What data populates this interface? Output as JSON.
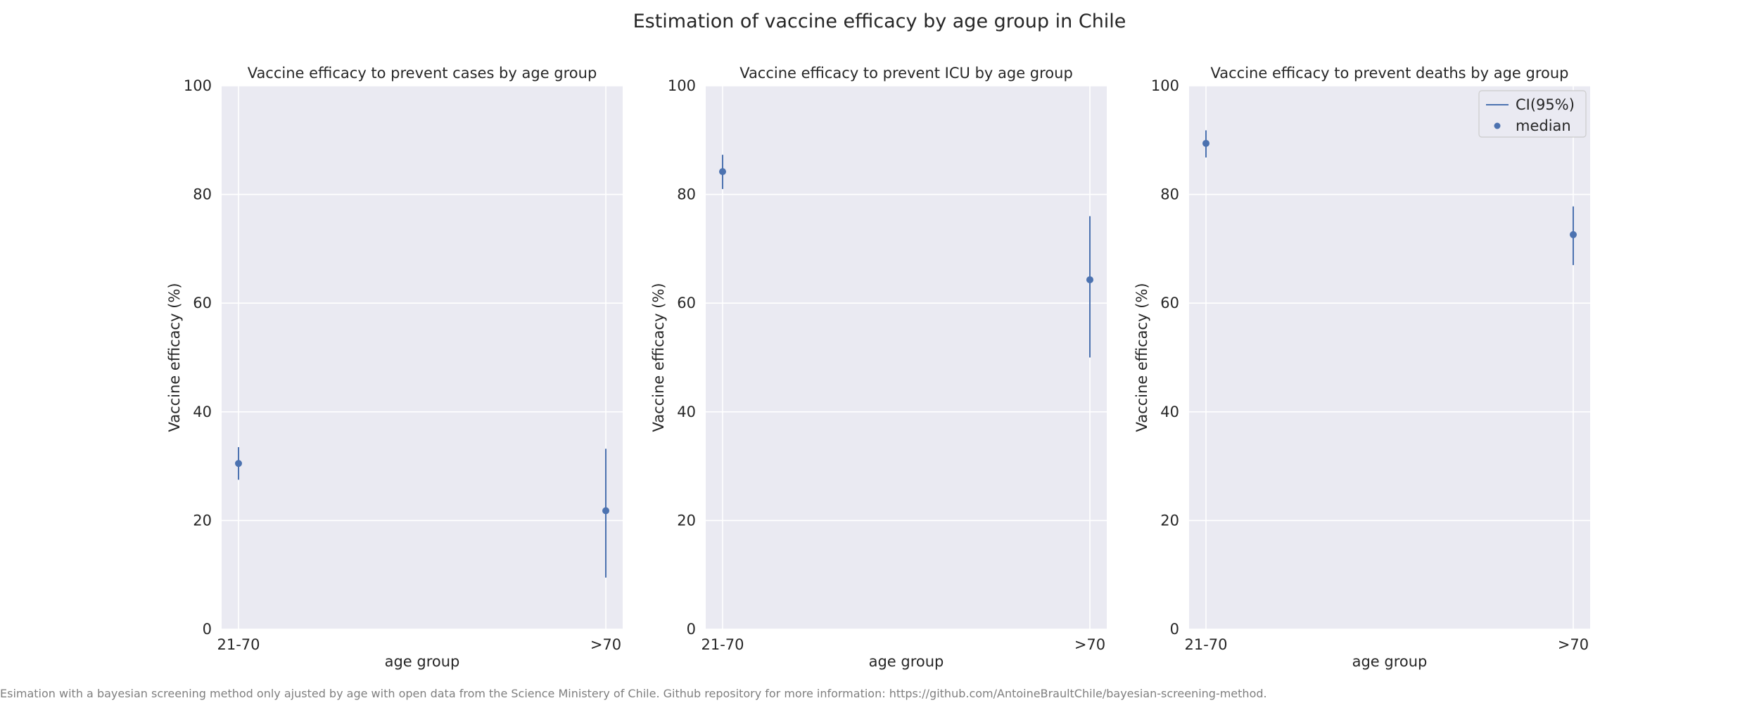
{
  "figure": {
    "title": "Estimation of vaccine efficacy by age group in Chile",
    "footnote": "Esimation with a bayesian screening method only ajusted by age with open data from the Science Ministery of Chile. Github repository for more information: https://github.com/AntoineBraultChile/bayesian-screening-method."
  },
  "legend": {
    "ci_label": "CI(95%)",
    "median_label": "median",
    "placement": "top-right of third panel"
  },
  "colors": {
    "plot_background": "#EAEAF2",
    "grid": "#FFFFFF",
    "series": "#4C72B0"
  },
  "chart_data": [
    {
      "type": "scatter",
      "title": "Vaccine efficacy to prevent cases by age group",
      "xlabel": "age group",
      "ylabel": "Vaccine efficacy (%)",
      "categories": [
        "21-70",
        ">70"
      ],
      "median": [
        30.5,
        21.8
      ],
      "ci_low": [
        27.5,
        9.5
      ],
      "ci_high": [
        33.5,
        33.2
      ],
      "ylim": [
        0,
        100
      ],
      "yticks": [
        0,
        20,
        40,
        60,
        80,
        100
      ],
      "grid": true
    },
    {
      "type": "scatter",
      "title": "Vaccine efficacy to prevent ICU by age group",
      "xlabel": "age group",
      "ylabel": "Vaccine efficacy (%)",
      "categories": [
        "21-70",
        ">70"
      ],
      "median": [
        84.2,
        64.3
      ],
      "ci_low": [
        81.0,
        50.0
      ],
      "ci_high": [
        87.3,
        76.0
      ],
      "ylim": [
        0,
        100
      ],
      "yticks": [
        0,
        20,
        40,
        60,
        80,
        100
      ],
      "grid": true
    },
    {
      "type": "scatter",
      "title": "Vaccine efficacy to prevent deaths by age group",
      "xlabel": "age group",
      "ylabel": "Vaccine efficacy (%)",
      "categories": [
        "21-70",
        ">70"
      ],
      "median": [
        89.4,
        72.6
      ],
      "ci_low": [
        86.8,
        67.0
      ],
      "ci_high": [
        91.8,
        77.8
      ],
      "ylim": [
        0,
        100
      ],
      "yticks": [
        0,
        20,
        40,
        60,
        80,
        100
      ],
      "grid": true,
      "legend": true
    }
  ]
}
